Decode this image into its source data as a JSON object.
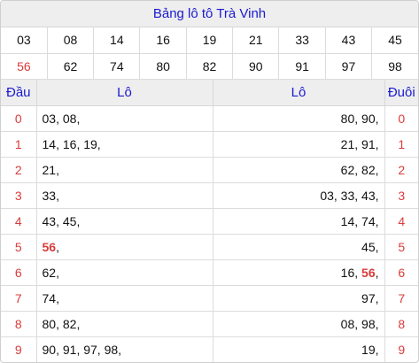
{
  "title": "Bảng lô tô Trà Vinh",
  "numbers_row1": [
    "03",
    "08",
    "14",
    "16",
    "19",
    "21",
    "33",
    "43",
    "45"
  ],
  "numbers_row2": [
    "56",
    "62",
    "74",
    "80",
    "82",
    "90",
    "91",
    "97",
    "98"
  ],
  "highlight_number": "56",
  "headers": {
    "dau": "Đầu",
    "lo_left": "Lô",
    "lo_right": "Lô",
    "duoi": "Đuôi"
  },
  "rows": [
    {
      "dau": "0",
      "left": [
        "03",
        "08"
      ],
      "right": [
        "80",
        "90"
      ],
      "duoi": "0"
    },
    {
      "dau": "1",
      "left": [
        "14",
        "16",
        "19"
      ],
      "right": [
        "21",
        "91"
      ],
      "duoi": "1"
    },
    {
      "dau": "2",
      "left": [
        "21"
      ],
      "right": [
        "62",
        "82"
      ],
      "duoi": "2"
    },
    {
      "dau": "3",
      "left": [
        "33"
      ],
      "right": [
        "03",
        "33",
        "43"
      ],
      "duoi": "3"
    },
    {
      "dau": "4",
      "left": [
        "43",
        "45"
      ],
      "right": [
        "14",
        "74"
      ],
      "duoi": "4"
    },
    {
      "dau": "5",
      "left": [
        "56"
      ],
      "right": [
        "45"
      ],
      "duoi": "5"
    },
    {
      "dau": "6",
      "left": [
        "62"
      ],
      "right": [
        "16",
        "56"
      ],
      "duoi": "6"
    },
    {
      "dau": "7",
      "left": [
        "74"
      ],
      "right": [
        "97"
      ],
      "duoi": "7"
    },
    {
      "dau": "8",
      "left": [
        "80",
        "82"
      ],
      "right": [
        "08",
        "98"
      ],
      "duoi": "8"
    },
    {
      "dau": "9",
      "left": [
        "90",
        "91",
        "97",
        "98"
      ],
      "right": [
        "19"
      ],
      "duoi": "9"
    }
  ],
  "colors": {
    "accent_blue": "#1a1ad1",
    "accent_red": "#d93b3b",
    "header_bg": "#eeeeee"
  }
}
